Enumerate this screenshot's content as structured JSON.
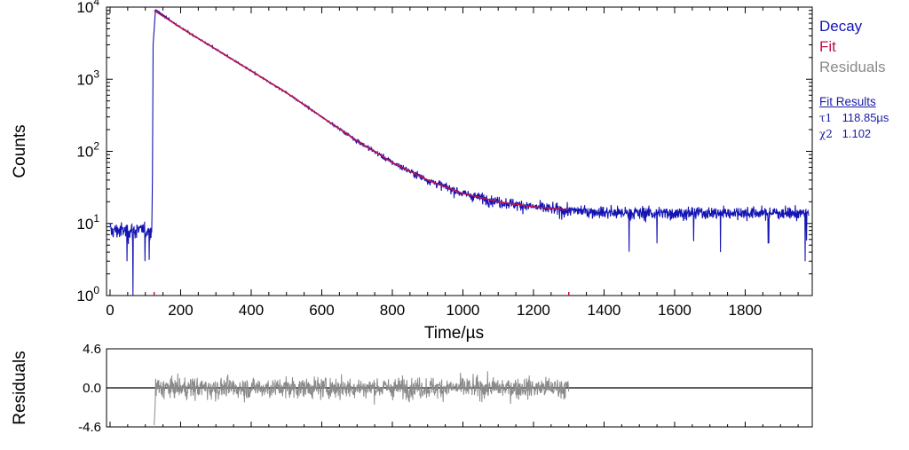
{
  "chart_data": [
    {
      "id": "decay_plot",
      "type": "line",
      "ylabel": "Counts",
      "xlabel": "Time/µs",
      "yscale": "log",
      "xlim": [
        -10,
        1990
      ],
      "ylim": [
        1,
        10000
      ],
      "x_ticks": [
        0,
        200,
        400,
        600,
        800,
        1000,
        1200,
        1400,
        1600,
        1800
      ],
      "y_ticks": [
        {
          "value": 1,
          "base": "10",
          "exp": "0"
        },
        {
          "value": 10,
          "base": "10",
          "exp": "1"
        },
        {
          "value": 100,
          "base": "10",
          "exp": "2"
        },
        {
          "value": 1000,
          "base": "10",
          "exp": "3"
        },
        {
          "value": 10000,
          "base": "10",
          "exp": "4"
        }
      ],
      "fit_range_markers": [
        125,
        1300
      ],
      "series": [
        {
          "name": "Decay",
          "color": "#1414b4",
          "noisy": true,
          "points": [
            [
              0,
              8
            ],
            [
              50,
              8
            ],
            [
              118,
              8
            ],
            [
              120,
              40
            ],
            [
              122,
              3000
            ],
            [
              128,
              8500
            ],
            [
              132,
              9000
            ],
            [
              200,
              5200
            ],
            [
              300,
              2600
            ],
            [
              400,
              1300
            ],
            [
              500,
              650
            ],
            [
              600,
              300
            ],
            [
              700,
              140
            ],
            [
              800,
              70
            ],
            [
              900,
              40
            ],
            [
              1000,
              26
            ],
            [
              1100,
              20
            ],
            [
              1200,
              17
            ],
            [
              1300,
              15
            ],
            [
              1500,
              14
            ],
            [
              1700,
              14
            ],
            [
              1980,
              14
            ]
          ],
          "dips": [
            [
              65,
              1
            ],
            [
              48,
              3
            ],
            [
              1730,
              4
            ],
            [
              1970,
              3
            ]
          ]
        },
        {
          "name": "Fit",
          "color": "#c0104a",
          "points": [
            [
              125,
              9000
            ],
            [
              200,
              5200
            ],
            [
              300,
              2600
            ],
            [
              400,
              1300
            ],
            [
              500,
              650
            ],
            [
              600,
              300
            ],
            [
              700,
              140
            ],
            [
              800,
              70
            ],
            [
              900,
              40
            ],
            [
              1000,
              26
            ],
            [
              1100,
              20
            ],
            [
              1200,
              17
            ],
            [
              1300,
              15.5
            ]
          ]
        }
      ]
    },
    {
      "id": "residuals_plot",
      "type": "line",
      "ylabel": "Residuals",
      "xlim": [
        -10,
        1990
      ],
      "ylim": [
        -4.6,
        4.6
      ],
      "y_ticks": [
        "4.6",
        "0.0",
        "-4.6"
      ],
      "x_ticks": [
        0,
        200,
        400,
        600,
        800,
        1000,
        1200,
        1400,
        1600,
        1800
      ],
      "series": [
        {
          "name": "Residuals",
          "color": "#8a8a8a",
          "x_start": 125,
          "x_end": 1300,
          "amplitude": 1.6,
          "initial_dip": -4.4
        }
      ]
    }
  ],
  "legend": {
    "items": [
      {
        "label": "Decay",
        "color": "#1414b4"
      },
      {
        "label": "Fit",
        "color": "#c0104a"
      },
      {
        "label": "Residuals",
        "color": "#8a8a8a"
      }
    ]
  },
  "fit_results": {
    "title": "Fit Results",
    "rows": [
      {
        "symbol": "τ1",
        "value": "118.85µs"
      },
      {
        "symbol": "χ2",
        "value": "1.102"
      }
    ]
  }
}
